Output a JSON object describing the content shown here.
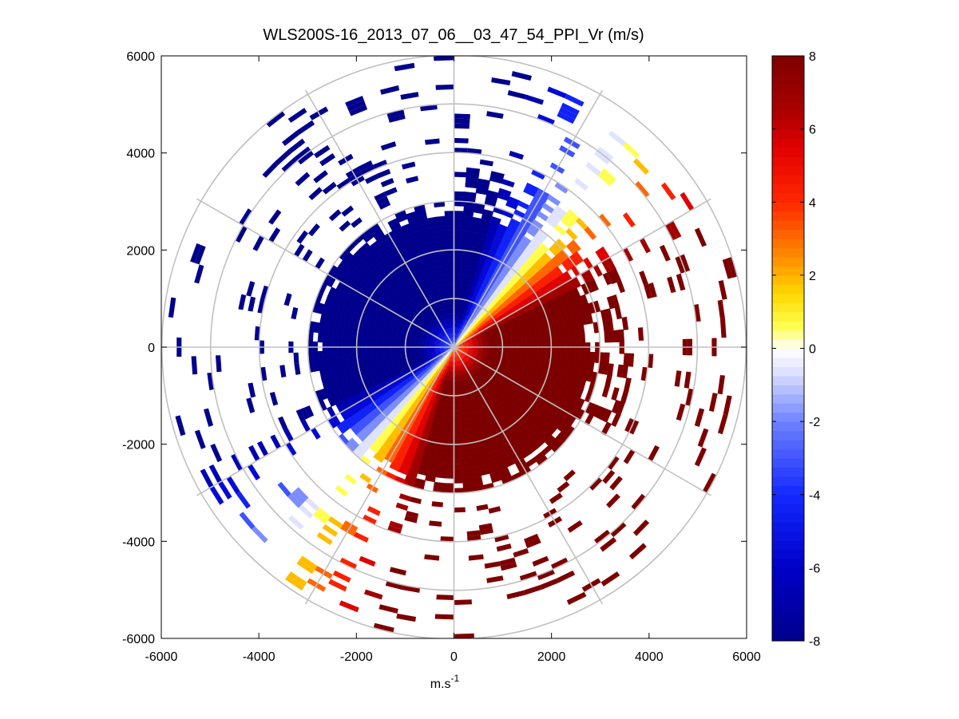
{
  "chart_data": {
    "type": "heatmap",
    "subtype": "polar-ppi-scan",
    "title": "WLS200S-16_2013_07_06__03_47_54_PPI_Vr (m/s)",
    "xlabel": "m.s",
    "xlabel_superscript": "-1",
    "ylabel": "",
    "xlim": [
      -6000,
      6000
    ],
    "ylim": [
      -6000,
      6000
    ],
    "x_ticks": [
      "-6000",
      "-4000",
      "-2000",
      "0",
      "2000",
      "4000",
      "6000"
    ],
    "x_tick_values": [
      -6000,
      -4000,
      -2000,
      0,
      2000,
      4000,
      6000
    ],
    "y_ticks": [
      "6000",
      "4000",
      "2000",
      "0",
      "-2000",
      "-4000",
      "-6000"
    ],
    "y_tick_values": [
      6000,
      4000,
      2000,
      0,
      -2000,
      -4000,
      -6000
    ],
    "range_rings": [
      1000,
      2000,
      3000,
      4000,
      5000,
      6000
    ],
    "spoke_angles_deg": [
      0,
      30,
      60,
      90,
      120,
      150,
      180,
      210,
      240,
      270,
      300,
      330
    ],
    "dense_region_max_range": 3000,
    "colorbar": {
      "min": -8,
      "max": 8,
      "ticks": [
        "8",
        "6",
        "4",
        "2",
        "0",
        "-2",
        "-4",
        "-6",
        "-8"
      ],
      "tick_values": [
        8,
        6,
        4,
        2,
        0,
        -2,
        -4,
        -6,
        -8
      ],
      "colormap": "blue-white-red-darkred"
    },
    "field_description": "Radial velocity Vr: negative (blue) over northwest half, positive (red) over southeast half, zero line along roughly 40 degrees from north to 220 degrees."
  }
}
